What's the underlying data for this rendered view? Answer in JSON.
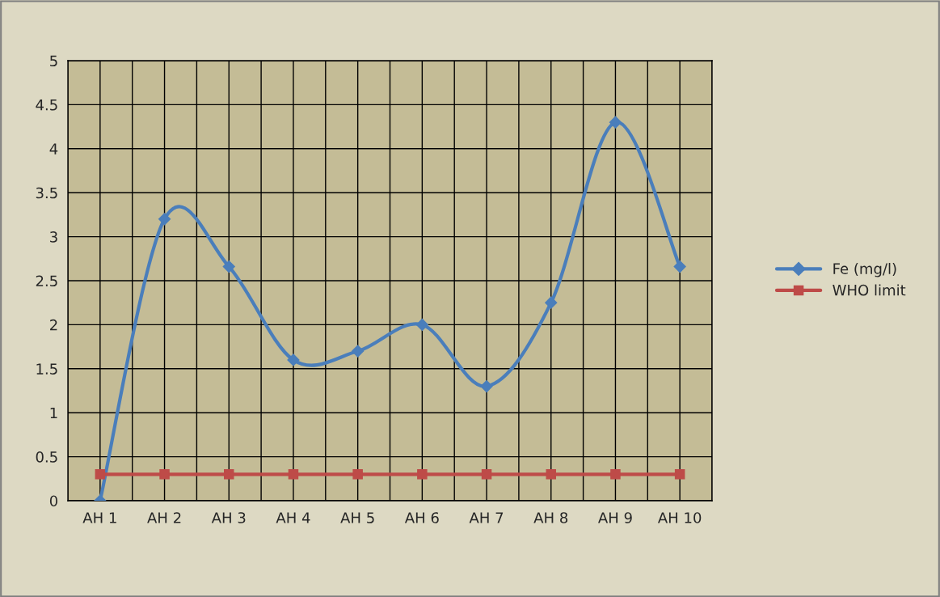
{
  "chart_data": {
    "type": "line",
    "categories": [
      "AH 1",
      "AH 2",
      "AH 3",
      "AH 4",
      "AH 5",
      "AH 6",
      "AH 7",
      "AH 8",
      "AH 9",
      "AH 10"
    ],
    "series": [
      {
        "name": "Fe (mg/l)",
        "color": "#4a7ebb",
        "marker": "diamond",
        "values": [
          0,
          3.2,
          2.66,
          1.6,
          1.7,
          2.0,
          1.3,
          2.25,
          4.3,
          2.66
        ]
      },
      {
        "name": "WHO limit",
        "color": "#be4b48",
        "marker": "square",
        "values": [
          0.3,
          0.3,
          0.3,
          0.3,
          0.3,
          0.3,
          0.3,
          0.3,
          0.3,
          0.3
        ]
      }
    ],
    "ylim": [
      0,
      5
    ],
    "yticks": [
      0,
      0.5,
      1,
      1.5,
      2,
      2.5,
      3,
      3.5,
      4,
      4.5,
      5
    ],
    "grid": true,
    "legend": "right",
    "line_style": "solid"
  }
}
